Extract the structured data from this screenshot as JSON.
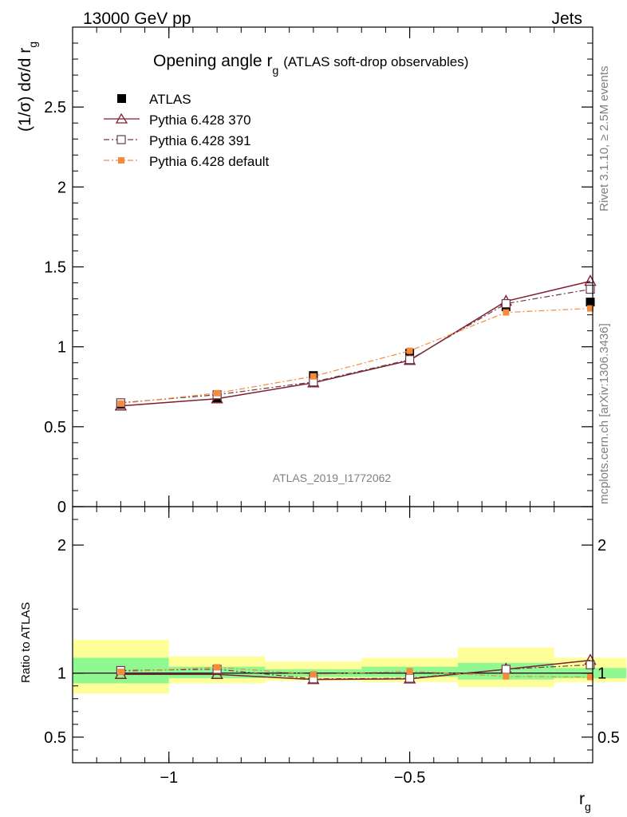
{
  "header": {
    "left": "13000 GeV pp",
    "right": "Jets"
  },
  "title": {
    "main": "Opening angle r",
    "sub": "g",
    "extra": "(ATLAS soft-drop observables)"
  },
  "ylabel_top": {
    "main": "(1/σ) dσ/d r",
    "sub": "g"
  },
  "ylabel_bottom": "Ratio to ATLAS",
  "xlabel": {
    "main": "r",
    "sub": "g"
  },
  "side_text": {
    "rivet": "Rivet 3.1.10, ≥ 2.5M events",
    "mcplots": "mcplots.cern.ch [arXiv:1306.3436]"
  },
  "analysis_id": "ATLAS_2019_I1772062",
  "colors": {
    "data": "#000000",
    "p370": "#7f1f2f",
    "p391": "#6b3b4b",
    "pdefault": "#f58b3a",
    "band_inner": "#90f890",
    "band_outer": "#ffff99"
  },
  "chart_data": [
    {
      "type": "line",
      "panel": "main",
      "xlim": [
        -1.2,
        -0.12
      ],
      "ylim": [
        0,
        3.0
      ],
      "y_ticks": [
        0,
        0.5,
        1,
        1.5,
        2,
        2.5
      ],
      "y_tick_labels": [
        "0",
        "0.5",
        "1",
        "1.5",
        "2",
        "2.5"
      ],
      "bin_edges": [
        -1.2,
        -1.0,
        -0.8,
        -0.6,
        -0.4,
        -0.2,
        -0.05
      ],
      "x": [
        -1.1,
        -0.9,
        -0.7,
        -0.5,
        -0.3,
        -0.125
      ],
      "series": [
        {
          "name": "ATLAS",
          "style": "data",
          "values": [
            0.64,
            0.68,
            0.82,
            0.96,
            1.25,
            1.28
          ]
        },
        {
          "name": "Pythia 6.428 370",
          "style": "p370",
          "values": [
            0.63,
            0.675,
            0.775,
            0.915,
            1.285,
            1.41
          ]
        },
        {
          "name": "Pythia 6.428 391",
          "style": "p391",
          "values": [
            0.65,
            0.7,
            0.78,
            0.92,
            1.27,
            1.36
          ]
        },
        {
          "name": "Pythia 6.428 default",
          "style": "pdefault",
          "values": [
            0.645,
            0.71,
            0.815,
            0.975,
            1.215,
            1.24
          ]
        }
      ]
    },
    {
      "type": "line",
      "panel": "ratio",
      "xlim": [
        -1.2,
        -0.12
      ],
      "ylim": [
        0.3,
        2.3
      ],
      "y_ticks": [
        0.5,
        1,
        2
      ],
      "y_tick_labels": [
        "0.5",
        "1",
        "2"
      ],
      "x_ticks": [
        -1,
        -0.5
      ],
      "x_tick_labels": [
        "−1",
        "−0.5"
      ],
      "bin_edges": [
        -1.2,
        -1.0,
        -0.8,
        -0.6,
        -0.4,
        -0.2,
        -0.05
      ],
      "x": [
        -1.1,
        -0.9,
        -0.7,
        -0.5,
        -0.3,
        -0.125
      ],
      "band_inner": {
        "lo": [
          0.92,
          0.96,
          0.97,
          0.97,
          0.95,
          0.96
        ],
        "hi": [
          1.12,
          1.05,
          1.03,
          1.05,
          1.08,
          1.04
        ]
      },
      "band_outer": {
        "lo": [
          0.84,
          0.92,
          0.94,
          0.93,
          0.89,
          0.93
        ],
        "hi": [
          1.26,
          1.13,
          1.09,
          1.12,
          1.2,
          1.12
        ]
      },
      "series": [
        {
          "name": "Pythia 6.428 370",
          "style": "p370",
          "values": [
            0.99,
            0.99,
            0.95,
            0.955,
            1.03,
            1.1
          ]
        },
        {
          "name": "Pythia 6.428 391",
          "style": "p391",
          "values": [
            1.02,
            1.03,
            0.955,
            0.96,
            1.03,
            1.065
          ]
        },
        {
          "name": "Pythia 6.428 default",
          "style": "pdefault",
          "values": [
            1.01,
            1.045,
            0.99,
            1.015,
            0.975,
            0.97
          ]
        }
      ]
    }
  ]
}
